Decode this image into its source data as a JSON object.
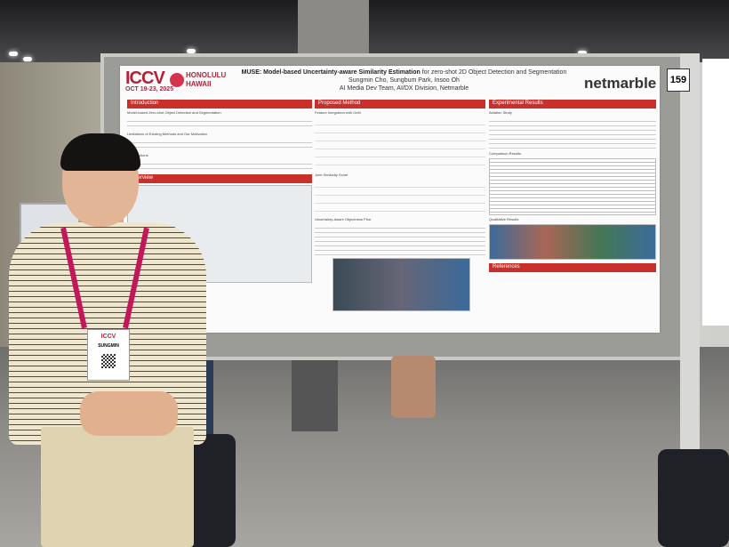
{
  "poster": {
    "conference_logo": "ICCV",
    "conference_dates": "OCT 19-23, 2025",
    "location": "HONOLULU HAWAII",
    "title_bold": "MUSE: Model-based Uncertainty-aware Similarity Estimation",
    "title_rest": "for zero-shot 2D Object Detection and Segmentation",
    "authors": "Sungmin Cho, Sungbum Park, Insoo Oh",
    "affiliation": "AI Media Dev Team, AI/DX Division, Netmarble",
    "brand_logo": "netmarble",
    "board_number": "159",
    "sections": {
      "introduction": "Introduction",
      "overview": "Overview",
      "proposed_method": "Proposed Method",
      "experimental_results": "Experimental Results",
      "references": "References"
    },
    "intro_items": [
      "Model-based Zero-shot Object Detection and Segmentation",
      "Limitations of Existing Methods and Our Motivation",
      "Contributions"
    ],
    "method_items": [
      "Feature Integration with GeM",
      "Joint Similarity Score",
      "Uncertainty-Aware Objectness Prior"
    ],
    "results_items": [
      "Ablation Study",
      "Comparison Results",
      "Qualitative Results"
    ]
  },
  "badge": {
    "name": "SUNGMIN",
    "logo": "ICCV"
  }
}
